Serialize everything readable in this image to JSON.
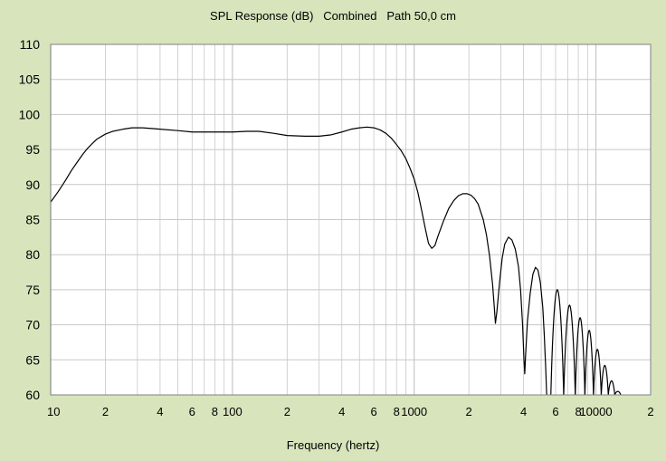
{
  "chart_data": {
    "type": "line",
    "title": "SPL Response (dB)   Combined   Path 50,0 cm",
    "xlabel": "Frequency (hertz)",
    "ylabel": "",
    "x_scale": "log",
    "xlim": [
      10,
      20000
    ],
    "ylim": [
      60,
      110
    ],
    "grid": true,
    "y_ticks": [
      60,
      65,
      70,
      75,
      80,
      85,
      90,
      95,
      100,
      105,
      110
    ],
    "x_ticks": [
      {
        "value": 10,
        "label": "10"
      },
      {
        "value": 20,
        "label": "2"
      },
      {
        "value": 40,
        "label": "4"
      },
      {
        "value": 60,
        "label": "6"
      },
      {
        "value": 80,
        "label": "8"
      },
      {
        "value": 100,
        "label": "100"
      },
      {
        "value": 200,
        "label": "2"
      },
      {
        "value": 400,
        "label": "4"
      },
      {
        "value": 600,
        "label": "6"
      },
      {
        "value": 800,
        "label": "8"
      },
      {
        "value": 1000,
        "label": "1000"
      },
      {
        "value": 2000,
        "label": "2"
      },
      {
        "value": 4000,
        "label": "4"
      },
      {
        "value": 6000,
        "label": "6"
      },
      {
        "value": 8000,
        "label": "8"
      },
      {
        "value": 10000,
        "label": "10000"
      },
      {
        "value": 20000,
        "label": "2"
      }
    ],
    "series": [
      {
        "color": "#000000",
        "points": [
          [
            10,
            87.5
          ],
          [
            11,
            89
          ],
          [
            12,
            90.5
          ],
          [
            13,
            92
          ],
          [
            14,
            93.2
          ],
          [
            15,
            94.3
          ],
          [
            16,
            95.2
          ],
          [
            17,
            95.9
          ],
          [
            18,
            96.5
          ],
          [
            20,
            97.2
          ],
          [
            22,
            97.6
          ],
          [
            25,
            97.9
          ],
          [
            28,
            98.1
          ],
          [
            32,
            98.1
          ],
          [
            36,
            98.0
          ],
          [
            40,
            97.9
          ],
          [
            50,
            97.7
          ],
          [
            60,
            97.5
          ],
          [
            70,
            97.5
          ],
          [
            80,
            97.5
          ],
          [
            100,
            97.5
          ],
          [
            120,
            97.6
          ],
          [
            140,
            97.6
          ],
          [
            170,
            97.3
          ],
          [
            200,
            97.0
          ],
          [
            250,
            96.9
          ],
          [
            300,
            96.9
          ],
          [
            350,
            97.1
          ],
          [
            400,
            97.5
          ],
          [
            450,
            97.9
          ],
          [
            500,
            98.1
          ],
          [
            550,
            98.2
          ],
          [
            600,
            98.1
          ],
          [
            650,
            97.8
          ],
          [
            700,
            97.3
          ],
          [
            750,
            96.6
          ],
          [
            800,
            95.7
          ],
          [
            850,
            94.8
          ],
          [
            900,
            93.7
          ],
          [
            950,
            92.3
          ],
          [
            1000,
            90.8
          ],
          [
            1050,
            88.8
          ],
          [
            1100,
            86.3
          ],
          [
            1150,
            83.8
          ],
          [
            1200,
            81.6
          ],
          [
            1250,
            80.9
          ],
          [
            1300,
            81.3
          ],
          [
            1350,
            82.6
          ],
          [
            1450,
            84.8
          ],
          [
            1550,
            86.6
          ],
          [
            1650,
            87.7
          ],
          [
            1750,
            88.4
          ],
          [
            1850,
            88.7
          ],
          [
            1950,
            88.7
          ],
          [
            2050,
            88.5
          ],
          [
            2150,
            88.0
          ],
          [
            2250,
            87.2
          ],
          [
            2400,
            85.0
          ],
          [
            2500,
            82.8
          ],
          [
            2600,
            79.8
          ],
          [
            2700,
            75.8
          ],
          [
            2760,
            72.5
          ],
          [
            2800,
            70.2
          ],
          [
            2850,
            71.8
          ],
          [
            2950,
            76.0
          ],
          [
            3050,
            79.5
          ],
          [
            3150,
            81.5
          ],
          [
            3300,
            82.5
          ],
          [
            3450,
            82.1
          ],
          [
            3600,
            80.8
          ],
          [
            3750,
            78.3
          ],
          [
            3850,
            75.0
          ],
          [
            3950,
            70.0
          ],
          [
            4020,
            65.0
          ],
          [
            4060,
            63.0
          ],
          [
            4100,
            65.5
          ],
          [
            4200,
            70.5
          ],
          [
            4350,
            74.5
          ],
          [
            4500,
            77.2
          ],
          [
            4650,
            78.2
          ],
          [
            4800,
            77.8
          ],
          [
            4950,
            76.0
          ],
          [
            5100,
            72.5
          ],
          [
            5200,
            68.5
          ],
          [
            5300,
            63.5
          ],
          [
            5360,
            60.0
          ]
        ]
      }
    ],
    "clipped_lobes": [
      {
        "f1": 5650,
        "f2": 6650,
        "peak": 75.0
      },
      {
        "f1": 6650,
        "f2": 7700,
        "peak": 72.8
      },
      {
        "f1": 7700,
        "f2": 8700,
        "peak": 71.0
      },
      {
        "f1": 8700,
        "f2": 9700,
        "peak": 69.2
      },
      {
        "f1": 9700,
        "f2": 10700,
        "peak": 66.5
      },
      {
        "f1": 10700,
        "f2": 11700,
        "peak": 64.2
      },
      {
        "f1": 11700,
        "f2": 12700,
        "peak": 62.0
      },
      {
        "f1": 12700,
        "f2": 13700,
        "peak": 60.5
      }
    ]
  },
  "colors": {
    "background": "#d8e4bc",
    "plot_area": "#ffffff",
    "grid": "#c8c8c8",
    "curve": "#000000"
  }
}
